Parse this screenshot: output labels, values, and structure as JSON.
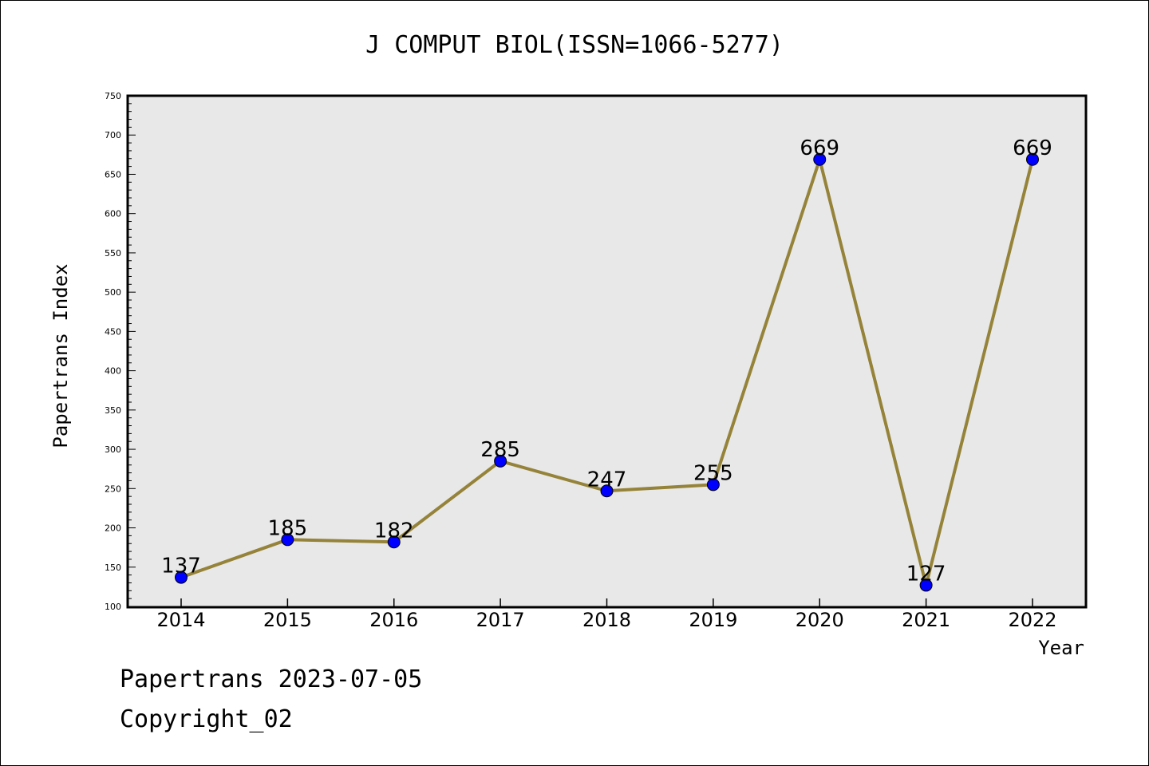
{
  "chart_data": {
    "type": "line",
    "title": "J COMPUT BIOL(ISSN=1066-5277)",
    "xlabel": "Year",
    "ylabel": "Papertrans Index",
    "categories": [
      "2014",
      "2015",
      "2016",
      "2017",
      "2018",
      "2019",
      "2020",
      "2021",
      "2022"
    ],
    "series": [
      {
        "values": [
          137,
          185,
          182,
          285,
          247,
          255,
          669,
          127,
          669
        ]
      }
    ],
    "ylim": [
      100,
      750
    ],
    "yticks": [
      100,
      150,
      200,
      250,
      300,
      350,
      400,
      450,
      500,
      550,
      600,
      650,
      700,
      750
    ],
    "data_labels": [
      "137",
      "185",
      "182",
      "285",
      "247",
      "255",
      "669",
      "127",
      "669"
    ],
    "grid": false,
    "legend": "none",
    "colors": {
      "line": "#958339",
      "marker": "#0000ff",
      "plot_background": "#e8e8e8"
    }
  },
  "footer": {
    "line1": "Papertrans 2023-07-05",
    "line2": "Copyright_02"
  }
}
